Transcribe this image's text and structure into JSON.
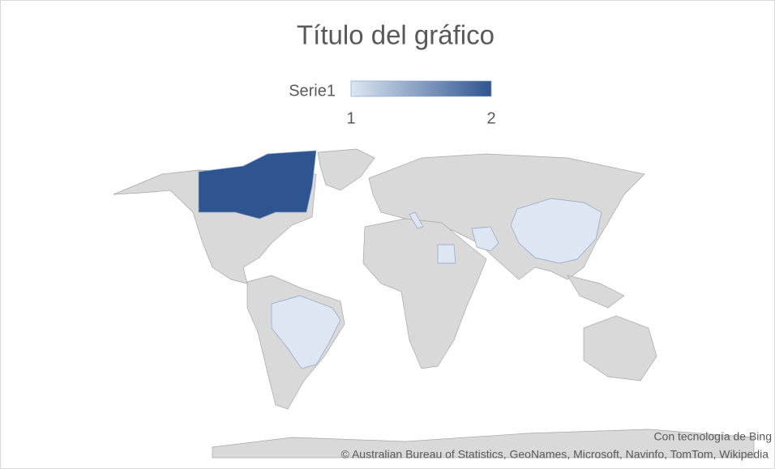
{
  "chart_data": {
    "type": "choropleth",
    "title": "Título del gráfico",
    "legend": {
      "series_name": "Serie1",
      "min": 1,
      "max": 2,
      "min_color": "#dde6f2",
      "max_color": "#2f5590"
    },
    "values": [
      2,
      1,
      1,
      1,
      1,
      1
    ],
    "attribution": [
      "Con tecnología de Bing",
      "© Australian Bureau of Statistics, GeoNames, Microsoft, Navinfo, TomTom, Wikipedia"
    ]
  }
}
